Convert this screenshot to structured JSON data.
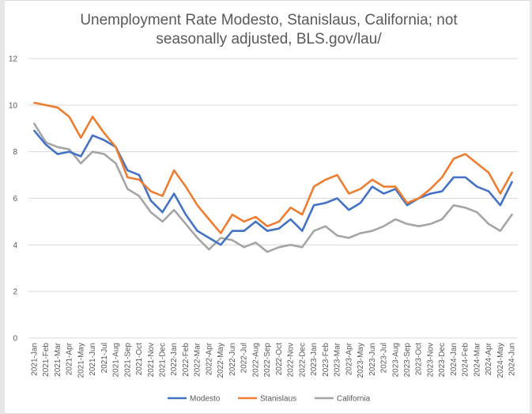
{
  "colors": {
    "modesto": "#4472C4",
    "stanislaus": "#ED7D31",
    "california": "#A5A5A5",
    "grid": "#d9d9d9",
    "text": "#595959"
  },
  "chart_data": {
    "type": "line",
    "title_line1": "Unemployment Rate Modesto, Stanislaus, California; not",
    "title_line2": "seasonally adjusted, BLS.gov/lau/",
    "xlabel": "",
    "ylabel": "",
    "ylim": [
      0,
      12
    ],
    "yticks": [
      0,
      2,
      4,
      6,
      8,
      10,
      12
    ],
    "grid": true,
    "legend_position": "bottom",
    "categories": [
      "2021-Jan",
      "2021-Feb",
      "2021-Mar",
      "2021-Apr",
      "2021-May",
      "2021-Jun",
      "2021-Jul",
      "2021-Aug",
      "2021-Sep",
      "2021-Oct",
      "2021-Nov",
      "2021-Dec",
      "2022-Jan",
      "2022-Feb",
      "2022-Mar",
      "2022-Apr",
      "2022-May",
      "2022-Jun",
      "2022-Jul",
      "2022-Aug",
      "2022-Sep",
      "2022-Oct",
      "2022-Nov",
      "2022-Dec",
      "2023-Jan",
      "2023-Feb",
      "2023-Mar",
      "2023-Apr",
      "2023-May",
      "2023-Jun",
      "2023-Jul",
      "2023-Aug",
      "2023-Sep",
      "2023-Oct",
      "2023-Nov",
      "2023-Dec",
      "2024-Jan",
      "2024-Feb",
      "2024-Mar",
      "2024-Apr",
      "2024-May",
      "2024-Jun"
    ],
    "series": [
      {
        "name": "Modesto",
        "color": "#4472C4",
        "values": [
          8.9,
          8.3,
          7.9,
          8.0,
          7.8,
          8.7,
          8.5,
          8.2,
          7.2,
          7.0,
          5.9,
          5.4,
          6.2,
          5.3,
          4.6,
          4.3,
          4.0,
          4.6,
          4.6,
          5.0,
          4.6,
          4.7,
          5.1,
          4.6,
          5.7,
          5.8,
          6.0,
          5.5,
          5.8,
          6.5,
          6.2,
          6.4,
          5.7,
          6.0,
          6.2,
          6.3,
          6.9,
          6.9,
          6.5,
          6.3,
          5.7,
          6.7
        ]
      },
      {
        "name": "Stanislaus",
        "color": "#ED7D31",
        "values": [
          10.1,
          10.0,
          9.9,
          9.5,
          8.6,
          9.5,
          8.8,
          8.2,
          6.9,
          6.8,
          6.3,
          6.1,
          7.2,
          6.5,
          5.7,
          5.1,
          4.5,
          5.3,
          5.0,
          5.2,
          4.8,
          5.0,
          5.6,
          5.3,
          6.5,
          6.8,
          7.0,
          6.2,
          6.4,
          6.8,
          6.5,
          6.5,
          5.8,
          6.0,
          6.4,
          6.9,
          7.7,
          7.9,
          7.5,
          7.1,
          6.2,
          7.1
        ]
      },
      {
        "name": "California",
        "color": "#A5A5A5",
        "values": [
          9.2,
          8.4,
          8.2,
          8.1,
          7.5,
          8.0,
          7.9,
          7.5,
          6.4,
          6.1,
          5.4,
          5.0,
          5.5,
          4.9,
          4.3,
          3.8,
          4.3,
          4.2,
          3.9,
          4.1,
          3.7,
          3.9,
          4.0,
          3.9,
          4.6,
          4.8,
          4.4,
          4.3,
          4.5,
          4.6,
          4.8,
          5.1,
          4.9,
          4.8,
          4.9,
          5.1,
          5.7,
          5.6,
          5.4,
          4.9,
          4.6,
          5.3
        ]
      }
    ]
  }
}
